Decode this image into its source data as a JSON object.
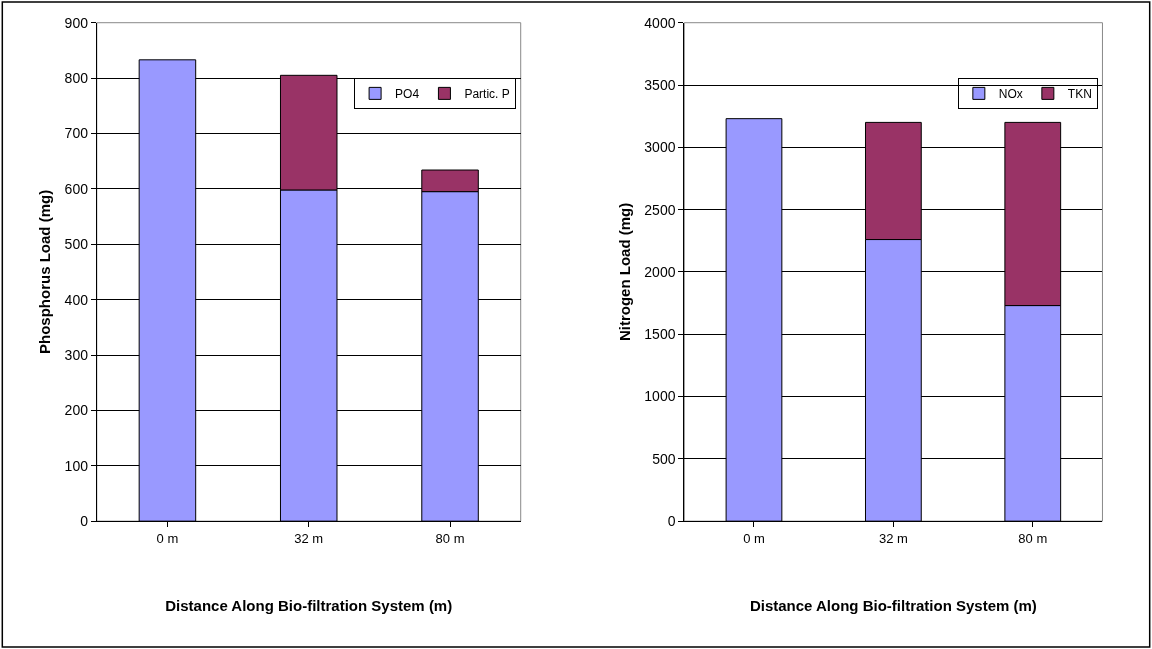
{
  "chart_data": [
    {
      "type": "bar",
      "stacked": true,
      "xlabel": "Distance Along Bio-filtration System (m)",
      "ylabel": "Phosphorus Load (mg)",
      "categories": [
        "0 m",
        "32 m",
        "80 m"
      ],
      "series": [
        {
          "name": "PO4",
          "color": "#9999ff",
          "values": [
            833,
            598,
            595
          ]
        },
        {
          "name": "Partic. P",
          "color": "#993366",
          "values": [
            null,
            207,
            39
          ]
        }
      ],
      "ylim": [
        0,
        900
      ],
      "yticks": [
        0,
        100,
        200,
        300,
        400,
        500,
        600,
        700,
        800,
        900
      ],
      "grid": "y",
      "legend": "top right"
    },
    {
      "type": "bar",
      "stacked": true,
      "xlabel": "Distance Along Bio-filtration System (m)",
      "ylabel": "Nitrogen Load (mg)",
      "categories": [
        "0 m",
        "32 m",
        "80 m"
      ],
      "series": [
        {
          "name": "NOx",
          "color": "#9999ff",
          "values": [
            3230,
            2260,
            1730
          ]
        },
        {
          "name": "TKN",
          "color": "#993366",
          "values": [
            null,
            940,
            1470
          ]
        }
      ],
      "ylim": [
        0,
        4000
      ],
      "yticks": [
        0,
        500,
        1000,
        1500,
        2000,
        2500,
        3000,
        3500,
        4000
      ],
      "grid": "y",
      "legend": "top right"
    }
  ]
}
